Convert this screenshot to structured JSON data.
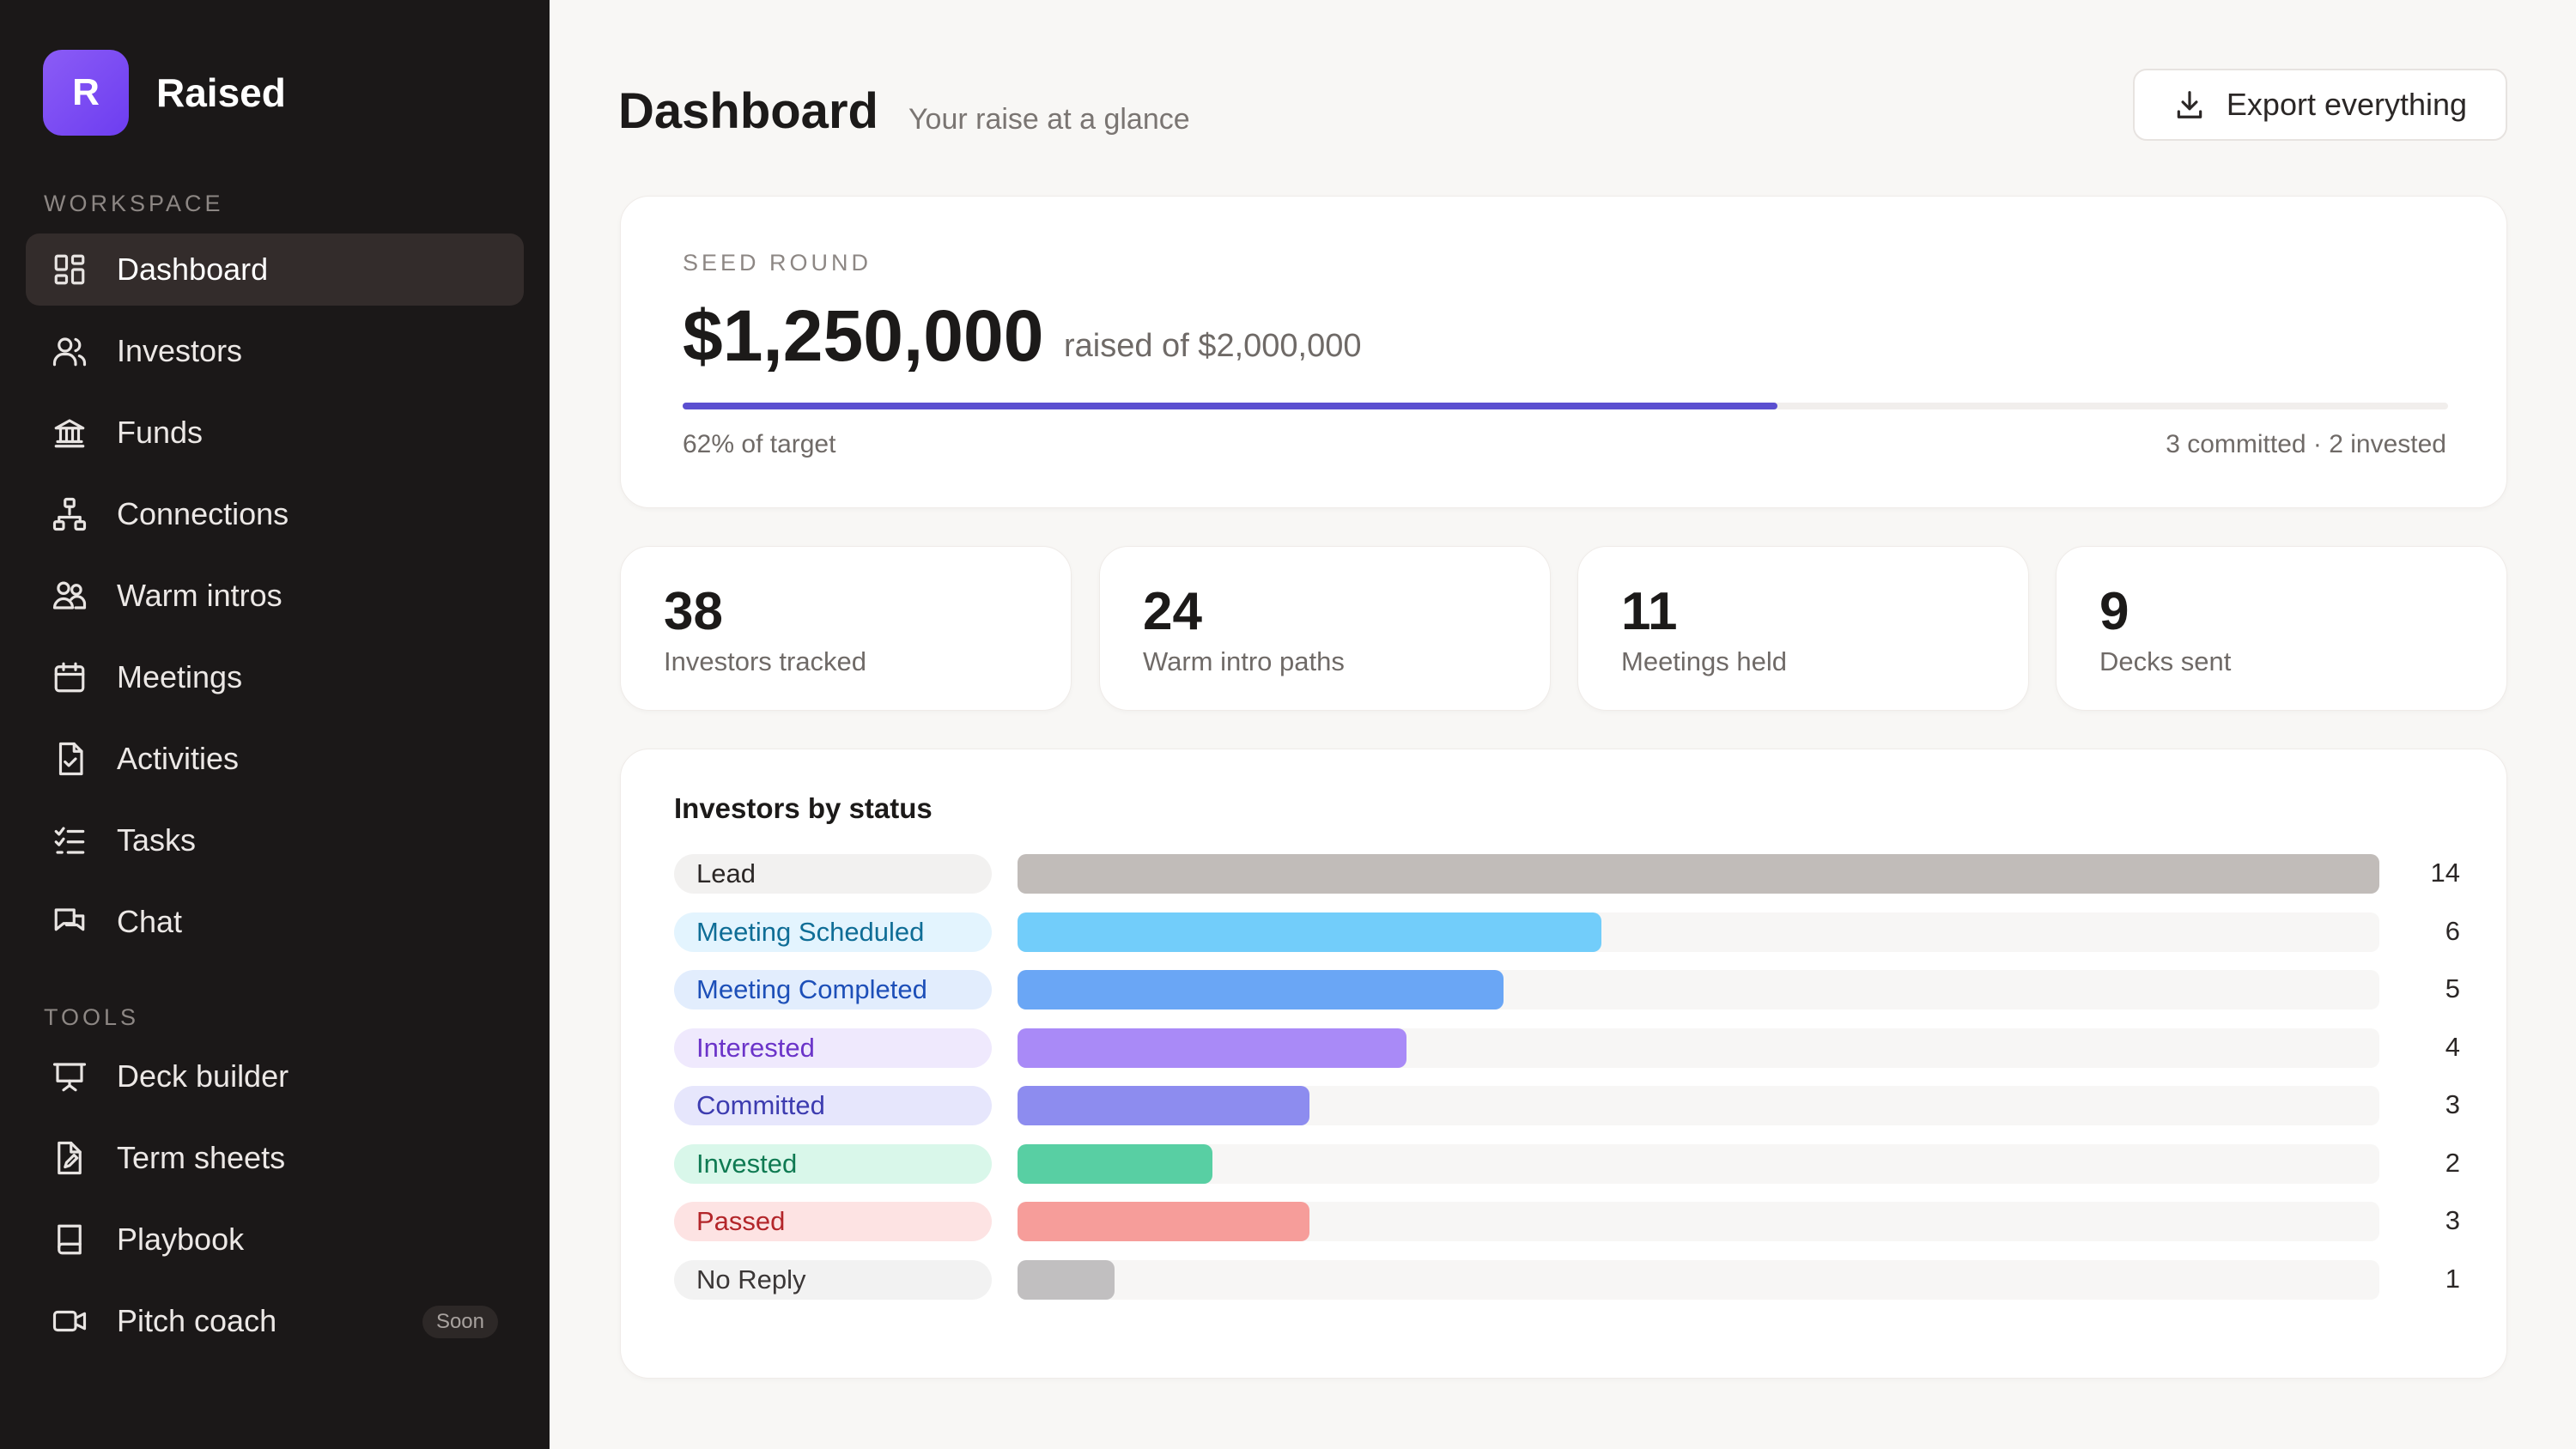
{
  "brand": {
    "logo_letter": "R",
    "name": "Raised",
    "accent": "#7c4dff"
  },
  "sidebar": {
    "workspace_label": "WORKSPACE",
    "workspace_items": [
      {
        "label": "Dashboard",
        "icon": "dashboard-icon",
        "active": true
      },
      {
        "label": "Investors",
        "icon": "users-icon"
      },
      {
        "label": "Funds",
        "icon": "bank-icon"
      },
      {
        "label": "Connections",
        "icon": "network-icon"
      },
      {
        "label": "Warm intros",
        "icon": "people-icon"
      },
      {
        "label": "Meetings",
        "icon": "calendar-icon"
      },
      {
        "label": "Activities",
        "icon": "file-check-icon"
      },
      {
        "label": "Tasks",
        "icon": "list-check-icon"
      },
      {
        "label": "Chat",
        "icon": "chat-icon"
      }
    ],
    "tools_label": "TOOLS",
    "tools_items": [
      {
        "label": "Deck builder",
        "icon": "presentation-icon"
      },
      {
        "label": "Term sheets",
        "icon": "file-edit-icon"
      },
      {
        "label": "Playbook",
        "icon": "book-icon"
      },
      {
        "label": "Pitch coach",
        "icon": "video-icon",
        "badge": "Soon"
      }
    ]
  },
  "header": {
    "title": "Dashboard",
    "subtitle": "Your raise at a glance",
    "export_label": "Export everything"
  },
  "round": {
    "label": "SEED ROUND",
    "amount": "$1,250,000",
    "of_text": "raised of $2,000,000",
    "progress_fraction": 0.62,
    "progress_text": "62% of target",
    "summary": "3 committed · 2 invested",
    "progress_color": "#5b4fd0"
  },
  "stats": [
    {
      "value": "38",
      "label": "Investors tracked"
    },
    {
      "value": "24",
      "label": "Warm intro paths"
    },
    {
      "value": "11",
      "label": "Meetings held"
    },
    {
      "value": "9",
      "label": "Decks sent"
    }
  ],
  "status": {
    "title": "Investors by status",
    "max": 14,
    "rows": [
      {
        "label": "Lead",
        "count": 14,
        "bar": "#c1bcb9",
        "pill_bg": "#f2f1f0",
        "pill_text": "#2b2726"
      },
      {
        "label": "Meeting Scheduled",
        "count": 6,
        "bar": "#72cdfa",
        "pill_bg": "#e3f4fe",
        "pill_text": "#0f6d96"
      },
      {
        "label": "Meeting Completed",
        "count": 5,
        "bar": "#6aa6f5",
        "pill_bg": "#e2edfd",
        "pill_text": "#1d4fb8"
      },
      {
        "label": "Interested",
        "count": 4,
        "bar": "#a98af7",
        "pill_bg": "#efe9fd",
        "pill_text": "#6b34c9"
      },
      {
        "label": "Committed",
        "count": 3,
        "bar": "#8d8cef",
        "pill_bg": "#e6e6fc",
        "pill_text": "#3d3cb0"
      },
      {
        "label": "Invested",
        "count": 2,
        "bar": "#58cfa3",
        "pill_bg": "#d9f7ea",
        "pill_text": "#0f7a52"
      },
      {
        "label": "Passed",
        "count": 3,
        "bar": "#f69d9a",
        "pill_bg": "#fde3e3",
        "pill_text": "#b3262a"
      },
      {
        "label": "No Reply",
        "count": 1,
        "bar": "#c1bfc0",
        "pill_bg": "#f2f2f2",
        "pill_text": "#3a3636"
      }
    ]
  }
}
